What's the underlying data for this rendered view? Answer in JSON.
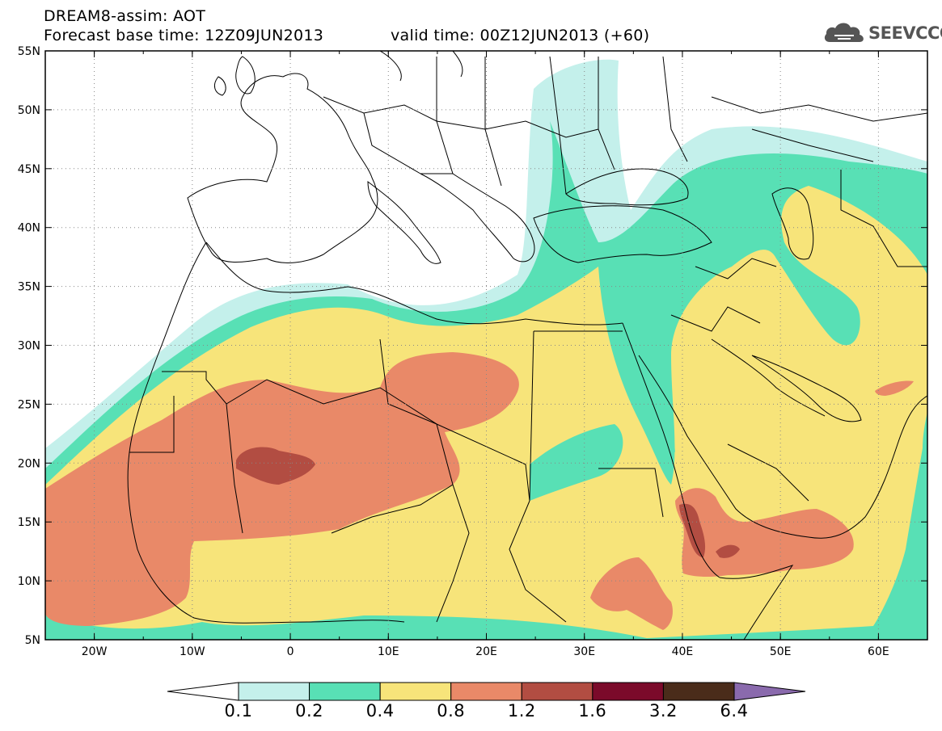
{
  "title": {
    "line1": "DREAM8-assim: AOT",
    "base_time": "Forecast base time: 12Z09JUN2013",
    "valid_time": "valid time: 00Z12JUN2013 (+60)"
  },
  "logo": {
    "text": "SEEVCCC",
    "icon": "cloud-icon"
  },
  "map": {
    "lon_range": [
      -25,
      65
    ],
    "lat_range": [
      5,
      55
    ],
    "lon_ticks": [
      {
        "value": -20,
        "label": "20W"
      },
      {
        "value": -10,
        "label": "10W"
      },
      {
        "value": 0,
        "label": "0"
      },
      {
        "value": 10,
        "label": "10E"
      },
      {
        "value": 20,
        "label": "20E"
      },
      {
        "value": 30,
        "label": "30E"
      },
      {
        "value": 40,
        "label": "40E"
      },
      {
        "value": 50,
        "label": "50E"
      },
      {
        "value": 60,
        "label": "60E"
      }
    ],
    "lat_ticks": [
      {
        "value": 5,
        "label": "5N"
      },
      {
        "value": 10,
        "label": "10N"
      },
      {
        "value": 15,
        "label": "15N"
      },
      {
        "value": 20,
        "label": "20N"
      },
      {
        "value": 25,
        "label": "25N"
      },
      {
        "value": 30,
        "label": "30N"
      },
      {
        "value": 35,
        "label": "35N"
      },
      {
        "value": 40,
        "label": "40N"
      },
      {
        "value": 45,
        "label": "45N"
      },
      {
        "value": 50,
        "label": "50N"
      },
      {
        "value": 55,
        "label": "55N"
      }
    ],
    "grid": true
  },
  "colorbar": {
    "levels": [
      "0.1",
      "0.2",
      "0.4",
      "0.8",
      "1.2",
      "1.6",
      "3.2",
      "6.4"
    ],
    "colors": [
      "#ffffff",
      "#c4f0eb",
      "#58e0b5",
      "#f7e47a",
      "#e98968",
      "#b24d42",
      "#7b0a2a",
      "#4a2c1a",
      "#8a6aad"
    ]
  },
  "aot_colors": {
    "c01": "#c4f0eb",
    "c02": "#58e0b5",
    "c04": "#f7e47a",
    "c08": "#e98968",
    "c12": "#b24d42"
  }
}
